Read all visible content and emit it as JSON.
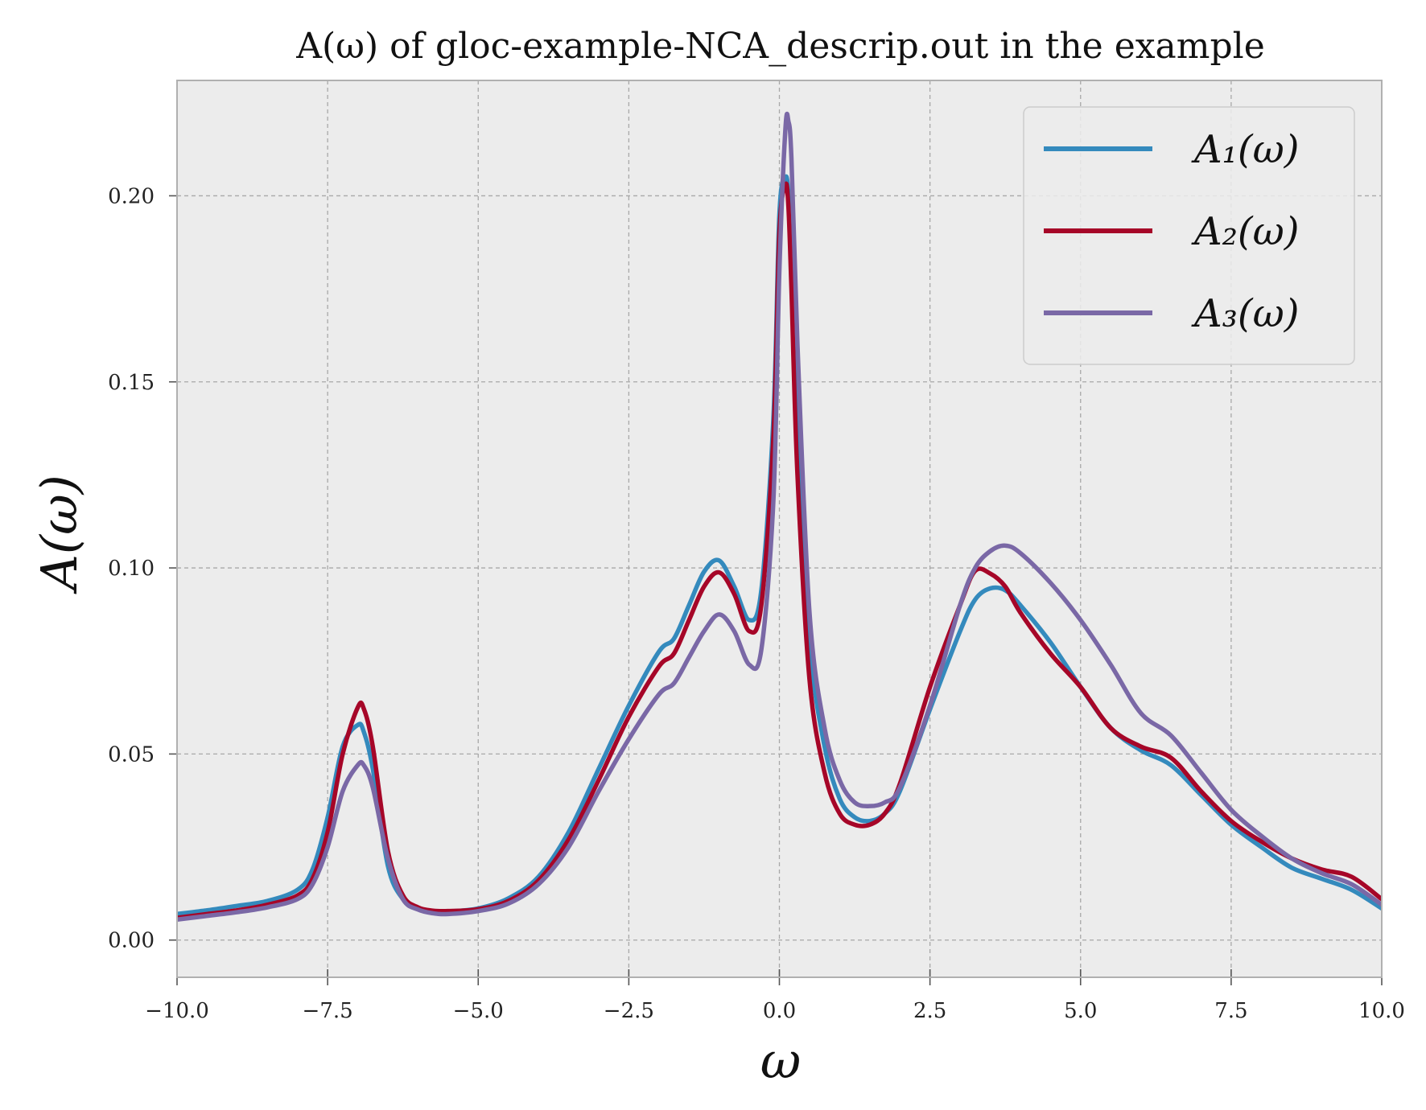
{
  "chart_data": {
    "type": "line",
    "title": "A(ω) of gloc-example-NCA_descrip.out in the example",
    "xlabel": "ω",
    "ylabel": "A(ω)",
    "xlim": [
      -10,
      10
    ],
    "ylim": [
      -0.01,
      0.231
    ],
    "xticks": [
      -10,
      -7.5,
      -5,
      -2.5,
      0,
      2.5,
      5,
      7.5,
      10
    ],
    "xtick_labels": [
      "−10.0",
      "−7.5",
      "−5.0",
      "−2.5",
      "0.0",
      "2.5",
      "5.0",
      "7.5",
      "10.0"
    ],
    "yticks": [
      0,
      0.05,
      0.1,
      0.15,
      0.2
    ],
    "ytick_labels": [
      "0.00",
      "0.05",
      "0.10",
      "0.15",
      "0.20"
    ],
    "grid": true,
    "legend_position": "top-right",
    "x": [
      -10,
      -9.5,
      -9,
      -8.5,
      -8,
      -7.75,
      -7.5,
      -7.25,
      -7,
      -6.9,
      -6.75,
      -6.5,
      -6.25,
      -6,
      -5.75,
      -5.5,
      -5,
      -4.5,
      -4,
      -3.5,
      -3,
      -2.5,
      -2,
      -1.75,
      -1.5,
      -1.25,
      -1,
      -0.75,
      -0.5,
      -0.3,
      -0.1,
      0,
      0.1,
      0.15,
      0.2,
      0.3,
      0.5,
      0.75,
      1,
      1.25,
      1.5,
      1.75,
      2,
      2.5,
      3,
      3.25,
      3.5,
      3.75,
      4,
      4.5,
      5,
      5.5,
      6,
      6.5,
      7,
      7.5,
      8,
      8.5,
      9,
      9.5,
      10
    ],
    "series": [
      {
        "name": "A₁(ω)",
        "color": "#348abd",
        "values": [
          0.007,
          0.008,
          0.0092,
          0.0105,
          0.0135,
          0.019,
          0.033,
          0.052,
          0.0578,
          0.056,
          0.046,
          0.02,
          0.011,
          0.0085,
          0.0078,
          0.0077,
          0.0085,
          0.0112,
          0.017,
          0.029,
          0.046,
          0.063,
          0.0775,
          0.081,
          0.09,
          0.099,
          0.102,
          0.095,
          0.086,
          0.094,
          0.14,
          0.195,
          0.205,
          0.2,
          0.18,
          0.135,
          0.08,
          0.052,
          0.038,
          0.033,
          0.032,
          0.034,
          0.04,
          0.062,
          0.083,
          0.0915,
          0.0945,
          0.094,
          0.09,
          0.08,
          0.068,
          0.057,
          0.051,
          0.047,
          0.039,
          0.031,
          0.025,
          0.0195,
          0.0165,
          0.0135,
          0.0085
        ]
      },
      {
        "name": "A₂(ω)",
        "color": "#a60628",
        "values": [
          0.006,
          0.007,
          0.008,
          0.0095,
          0.012,
          0.0165,
          0.029,
          0.05,
          0.0625,
          0.0622,
          0.052,
          0.024,
          0.012,
          0.0088,
          0.0079,
          0.0078,
          0.0083,
          0.0105,
          0.016,
          0.027,
          0.043,
          0.06,
          0.0735,
          0.077,
          0.086,
          0.095,
          0.0988,
          0.093,
          0.083,
          0.09,
          0.135,
          0.19,
          0.203,
          0.197,
          0.175,
          0.125,
          0.07,
          0.045,
          0.034,
          0.031,
          0.031,
          0.034,
          0.042,
          0.068,
          0.09,
          0.0992,
          0.0985,
          0.095,
          0.088,
          0.077,
          0.068,
          0.057,
          0.052,
          0.049,
          0.04,
          0.032,
          0.0265,
          0.022,
          0.019,
          0.017,
          0.011
        ]
      },
      {
        "name": "A₃(ω)",
        "color": "#7a68a6",
        "values": [
          0.0055,
          0.0065,
          0.0075,
          0.0088,
          0.011,
          0.015,
          0.025,
          0.04,
          0.047,
          0.047,
          0.041,
          0.022,
          0.011,
          0.0082,
          0.0072,
          0.007,
          0.0078,
          0.0098,
          0.015,
          0.025,
          0.04,
          0.054,
          0.066,
          0.069,
          0.076,
          0.083,
          0.0875,
          0.083,
          0.074,
          0.078,
          0.118,
          0.18,
          0.218,
          0.22,
          0.21,
          0.16,
          0.088,
          0.057,
          0.043,
          0.037,
          0.036,
          0.037,
          0.041,
          0.063,
          0.09,
          0.1,
          0.1045,
          0.106,
          0.104,
          0.096,
          0.086,
          0.074,
          0.061,
          0.055,
          0.045,
          0.035,
          0.028,
          0.022,
          0.018,
          0.015,
          0.0095
        ]
      }
    ],
    "colors": {
      "plot_background": "#ececec",
      "grid": "#a8a8a8",
      "frame": "#b0b0b0"
    }
  }
}
